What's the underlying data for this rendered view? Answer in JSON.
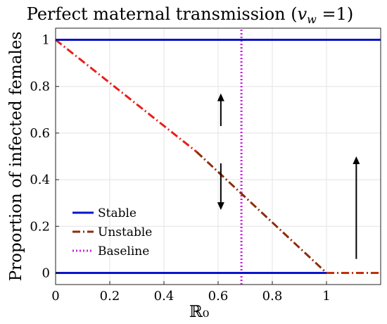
{
  "chart_data": {
    "type": "line",
    "title": "Perfect maternal transmission (v_w =1)",
    "title_parts": {
      "main": "Perfect maternal transmission (",
      "var": "v",
      "sub": "w",
      "rest": " =1)"
    },
    "xlabel": "ℝ₀",
    "ylabel": "Proportion of infected females",
    "xlim": [
      0,
      1.2
    ],
    "ylim": [
      -0.05,
      1.05
    ],
    "xticks": [
      0,
      0.2,
      0.4,
      0.6,
      0.8,
      1
    ],
    "xtick_labels": [
      "0",
      "0.2",
      "0.4",
      "0.6",
      "0.8",
      "1"
    ],
    "yticks": [
      0,
      0.2,
      0.4,
      0.6,
      0.8,
      1
    ],
    "ytick_labels": [
      "0",
      "0.2",
      "0.4",
      "0.6",
      "0.8",
      "1"
    ],
    "grid": true,
    "legend_position": "bottom-left",
    "series": [
      {
        "name": "Stable",
        "color": "#0a14c8",
        "style": "solid",
        "segments": [
          {
            "x": [
              0,
              1.2
            ],
            "y": [
              1,
              1
            ]
          },
          {
            "x": [
              0,
              1.0
            ],
            "y": [
              0,
              0
            ]
          }
        ]
      },
      {
        "name": "Unstable",
        "color": "#8b2e0a",
        "style": "dashdot",
        "segments": [
          {
            "x": [
              0,
              0.52
            ],
            "y": [
              1,
              0.52
            ],
            "color": "#e8201a"
          },
          {
            "x": [
              0.52,
              1.0
            ],
            "y": [
              0.52,
              0
            ],
            "color": "#8b2e0a"
          },
          {
            "x": [
              1.0,
              1.2
            ],
            "y": [
              0,
              0
            ],
            "color": "#c0300a"
          }
        ]
      },
      {
        "name": "Baseline",
        "color": "#c81ee0",
        "style": "dotted",
        "segments": [
          {
            "x": [
              0.686,
              0.686
            ],
            "y": [
              -0.05,
              1.05
            ]
          }
        ]
      }
    ],
    "arrows": [
      {
        "x": 0.61,
        "y_from": 0.63,
        "y_to": 0.77,
        "direction": "up"
      },
      {
        "x": 0.61,
        "y_from": 0.47,
        "y_to": 0.27,
        "direction": "down"
      },
      {
        "x": 1.11,
        "y_from": 0.06,
        "y_to": 0.5,
        "direction": "up"
      }
    ]
  }
}
